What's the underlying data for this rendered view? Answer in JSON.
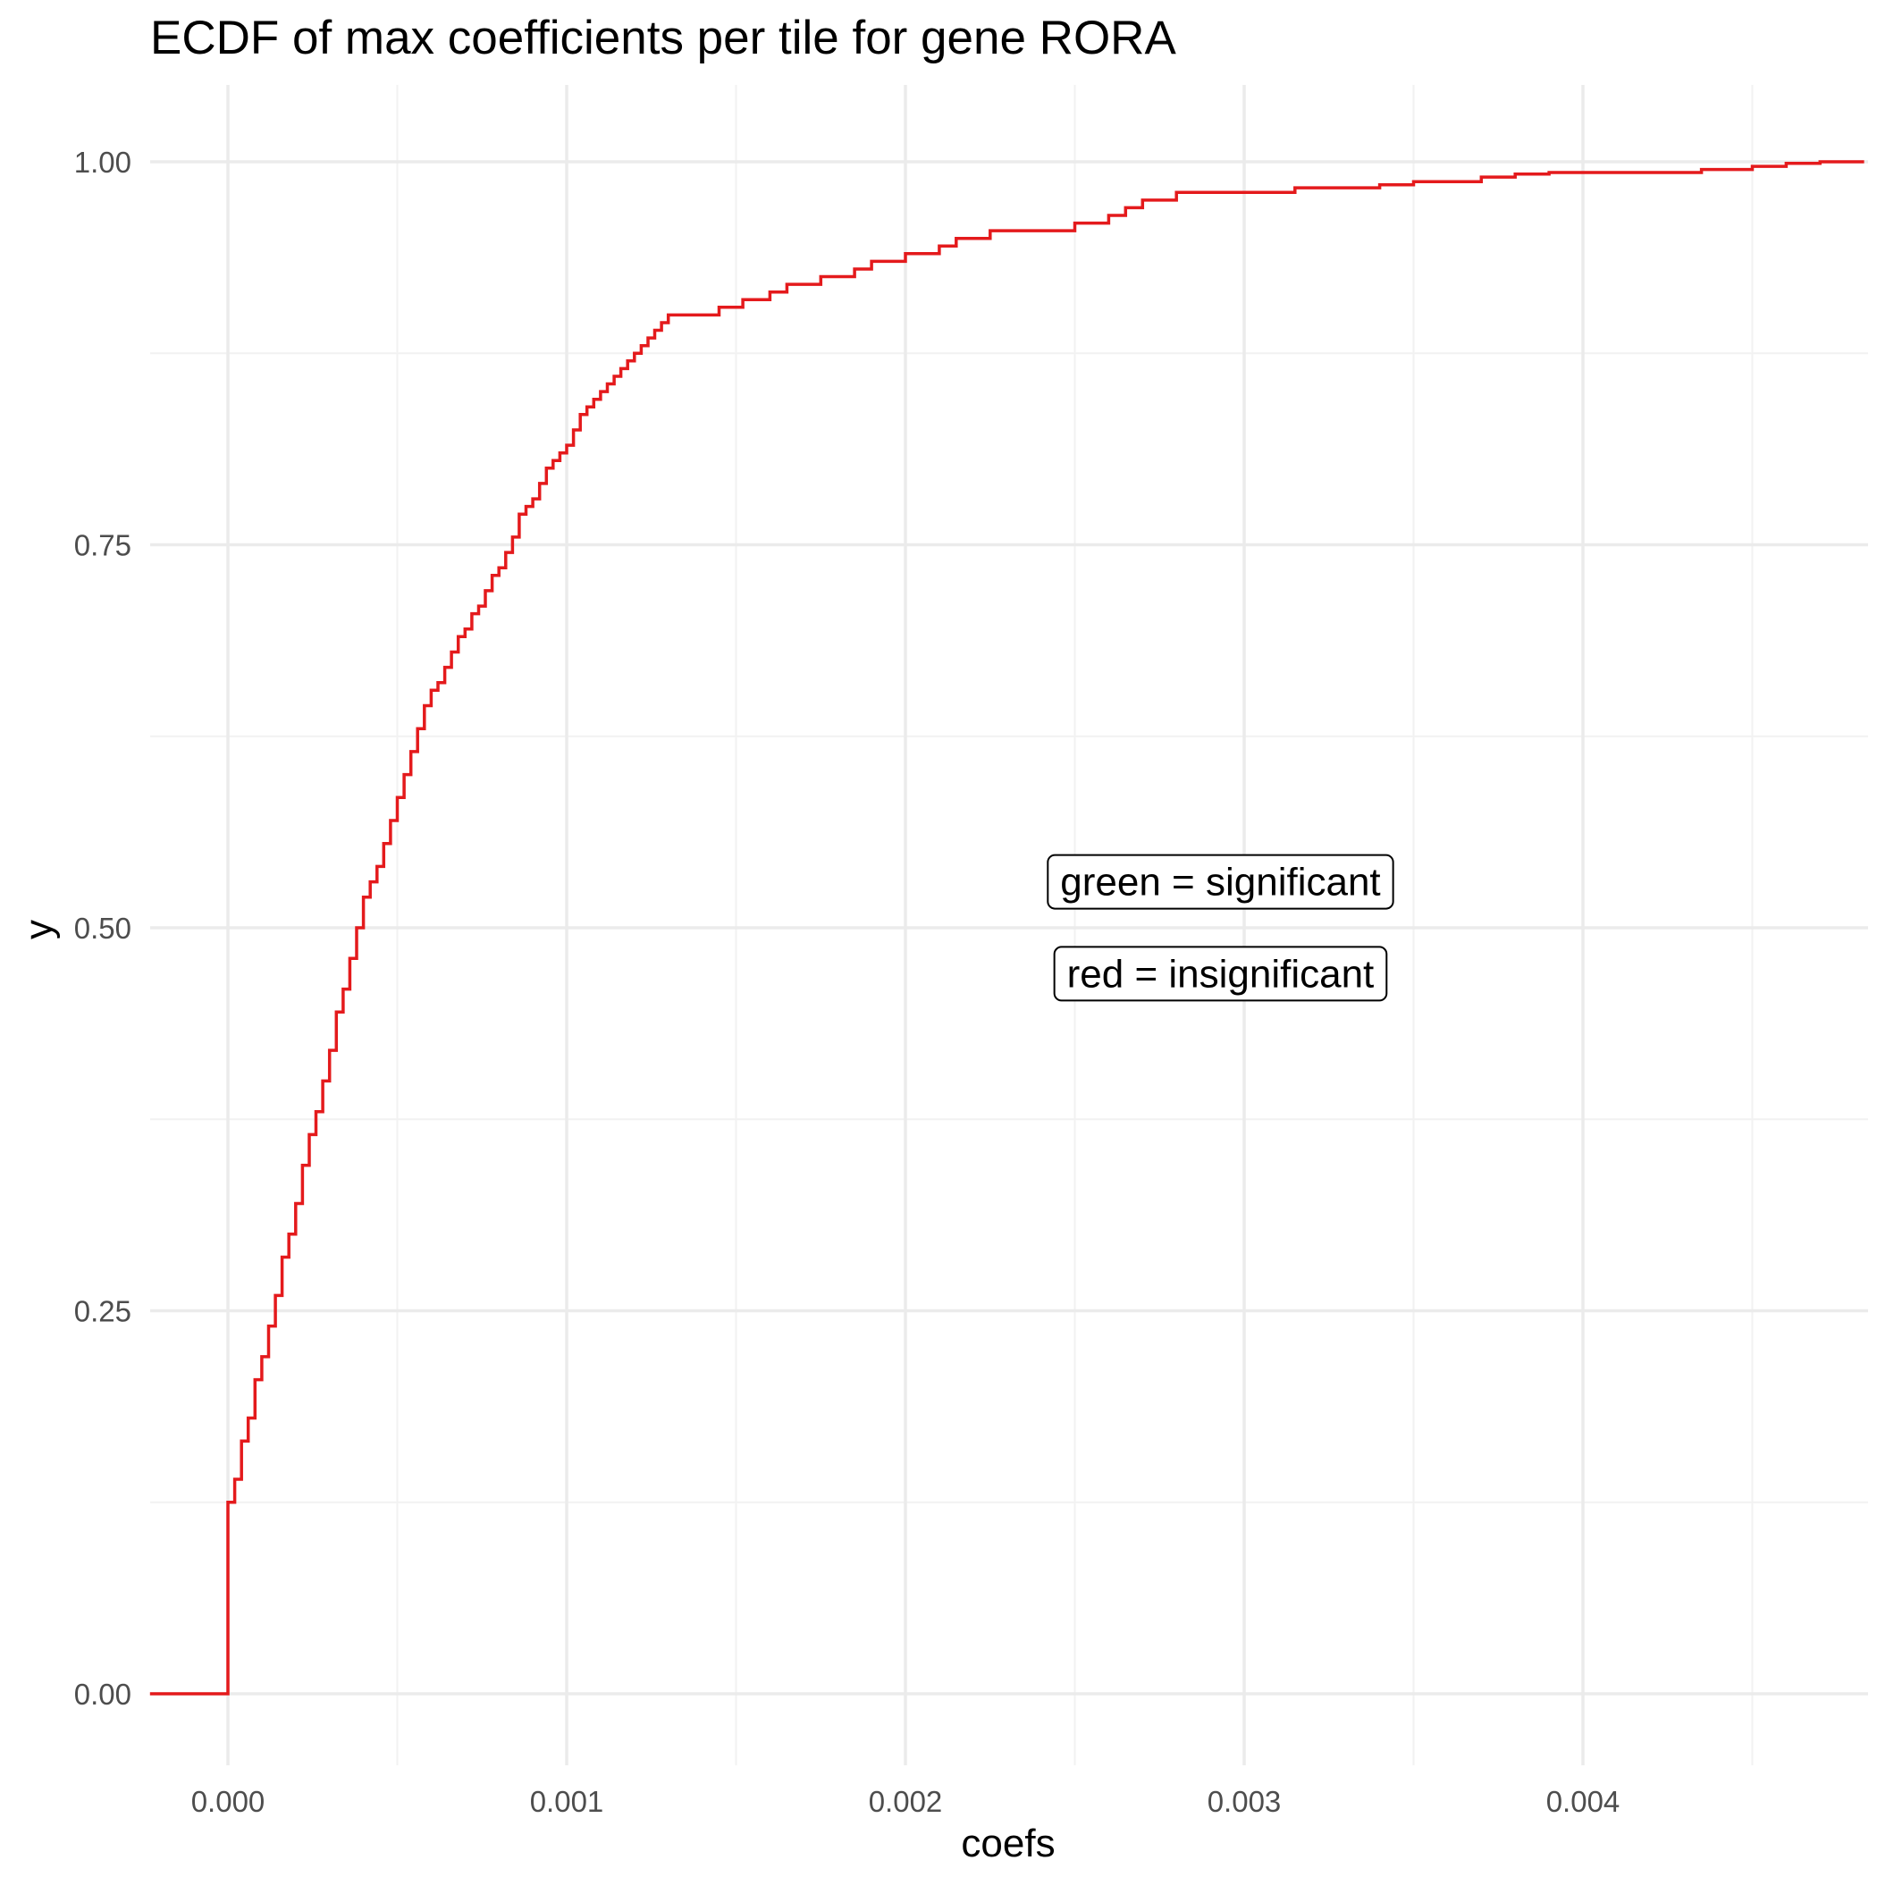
{
  "chart_data": {
    "type": "line",
    "subtype": "step-ecdf",
    "title": "ECDF of max coefficients per tile for gene RORA",
    "xlabel": "coefs",
    "ylabel": "y",
    "xlim": [
      -0.00023,
      0.00483
    ],
    "ylim": [
      -0.05,
      1.05
    ],
    "grid": true,
    "x_ticks": [
      {
        "value": 0.0,
        "label": "0.000"
      },
      {
        "value": 0.001,
        "label": "0.001"
      },
      {
        "value": 0.002,
        "label": "0.002"
      },
      {
        "value": 0.003,
        "label": "0.003"
      },
      {
        "value": 0.004,
        "label": "0.004"
      }
    ],
    "y_ticks": [
      {
        "value": 0.0,
        "label": "0.00"
      },
      {
        "value": 0.25,
        "label": "0.25"
      },
      {
        "value": 0.5,
        "label": "0.50"
      },
      {
        "value": 0.75,
        "label": "0.75"
      },
      {
        "value": 1.0,
        "label": "1.00"
      }
    ],
    "series": [
      {
        "color": "#e41a1c",
        "points": [
          [
            -0.00023,
            0.0
          ],
          [
            0.0,
            0.0
          ],
          [
            0.0,
            0.125
          ],
          [
            2e-05,
            0.14
          ],
          [
            4e-05,
            0.165
          ],
          [
            6e-05,
            0.18
          ],
          [
            8e-05,
            0.205
          ],
          [
            0.0001,
            0.22
          ],
          [
            0.00012,
            0.24
          ],
          [
            0.00014,
            0.26
          ],
          [
            0.00016,
            0.285
          ],
          [
            0.00018,
            0.3
          ],
          [
            0.0002,
            0.32
          ],
          [
            0.00022,
            0.345
          ],
          [
            0.00024,
            0.365
          ],
          [
            0.00026,
            0.38
          ],
          [
            0.00028,
            0.4
          ],
          [
            0.0003,
            0.42
          ],
          [
            0.00032,
            0.445
          ],
          [
            0.00034,
            0.46
          ],
          [
            0.00036,
            0.48
          ],
          [
            0.00038,
            0.5
          ],
          [
            0.0004,
            0.52
          ],
          [
            0.00042,
            0.53
          ],
          [
            0.00044,
            0.54
          ],
          [
            0.00046,
            0.555
          ],
          [
            0.00048,
            0.57
          ],
          [
            0.0005,
            0.585
          ],
          [
            0.00052,
            0.6
          ],
          [
            0.00054,
            0.615
          ],
          [
            0.00056,
            0.63
          ],
          [
            0.00058,
            0.645
          ],
          [
            0.0006,
            0.655
          ],
          [
            0.00062,
            0.66
          ],
          [
            0.00064,
            0.67
          ],
          [
            0.00066,
            0.68
          ],
          [
            0.00068,
            0.69
          ],
          [
            0.0007,
            0.695
          ],
          [
            0.00072,
            0.705
          ],
          [
            0.00074,
            0.71
          ],
          [
            0.00076,
            0.72
          ],
          [
            0.00078,
            0.73
          ],
          [
            0.0008,
            0.735
          ],
          [
            0.00082,
            0.745
          ],
          [
            0.00084,
            0.755
          ],
          [
            0.00086,
            0.77
          ],
          [
            0.00088,
            0.775
          ],
          [
            0.0009,
            0.78
          ],
          [
            0.00092,
            0.79
          ],
          [
            0.00094,
            0.8
          ],
          [
            0.00096,
            0.805
          ],
          [
            0.00098,
            0.81
          ],
          [
            0.001,
            0.815
          ],
          [
            0.00102,
            0.825
          ],
          [
            0.00104,
            0.835
          ],
          [
            0.00106,
            0.84
          ],
          [
            0.00108,
            0.845
          ],
          [
            0.0011,
            0.85
          ],
          [
            0.00112,
            0.855
          ],
          [
            0.00114,
            0.86
          ],
          [
            0.00116,
            0.865
          ],
          [
            0.00118,
            0.87
          ],
          [
            0.0012,
            0.875
          ],
          [
            0.00122,
            0.88
          ],
          [
            0.00124,
            0.885
          ],
          [
            0.00126,
            0.89
          ],
          [
            0.00128,
            0.895
          ],
          [
            0.0013,
            0.9
          ],
          [
            0.00135,
            0.9
          ],
          [
            0.0014,
            0.9
          ],
          [
            0.00145,
            0.905
          ],
          [
            0.0015,
            0.905
          ],
          [
            0.00152,
            0.91
          ],
          [
            0.00155,
            0.91
          ],
          [
            0.0016,
            0.915
          ],
          [
            0.00165,
            0.92
          ],
          [
            0.0017,
            0.92
          ],
          [
            0.00175,
            0.925
          ],
          [
            0.0018,
            0.925
          ],
          [
            0.00185,
            0.93
          ],
          [
            0.0019,
            0.935
          ],
          [
            0.00195,
            0.935
          ],
          [
            0.002,
            0.94
          ],
          [
            0.00205,
            0.94
          ],
          [
            0.0021,
            0.945
          ],
          [
            0.00215,
            0.95
          ],
          [
            0.0022,
            0.95
          ],
          [
            0.00225,
            0.955
          ],
          [
            0.0023,
            0.955
          ],
          [
            0.0024,
            0.955
          ],
          [
            0.0025,
            0.96
          ],
          [
            0.00255,
            0.96
          ],
          [
            0.0026,
            0.965
          ],
          [
            0.00265,
            0.97
          ],
          [
            0.0027,
            0.975
          ],
          [
            0.0028,
            0.98
          ],
          [
            0.0029,
            0.98
          ],
          [
            0.003,
            0.98
          ],
          [
            0.0031,
            0.98
          ],
          [
            0.00315,
            0.983
          ],
          [
            0.0033,
            0.983
          ],
          [
            0.0034,
            0.985
          ],
          [
            0.0035,
            0.987
          ],
          [
            0.0036,
            0.987
          ],
          [
            0.0037,
            0.99
          ],
          [
            0.0038,
            0.992
          ],
          [
            0.0039,
            0.993
          ],
          [
            0.004,
            0.993
          ],
          [
            0.0041,
            0.993
          ],
          [
            0.0042,
            0.993
          ],
          [
            0.00435,
            0.995
          ],
          [
            0.0045,
            0.997
          ],
          [
            0.0046,
            0.999
          ],
          [
            0.0047,
            1.0
          ],
          [
            0.00483,
            1.0
          ]
        ]
      }
    ],
    "annotations": [
      {
        "text": "green = significant",
        "x": 0.00293,
        "y": 0.53
      },
      {
        "text": "red = insignificant",
        "x": 0.00293,
        "y": 0.47
      }
    ]
  },
  "colors": {
    "line": "#e41a1c",
    "grid_major": "#ebebeb",
    "grid_minor": "#f2f2f2",
    "tick_text": "#4d4d4d",
    "text": "#000000",
    "background": "#ffffff"
  }
}
